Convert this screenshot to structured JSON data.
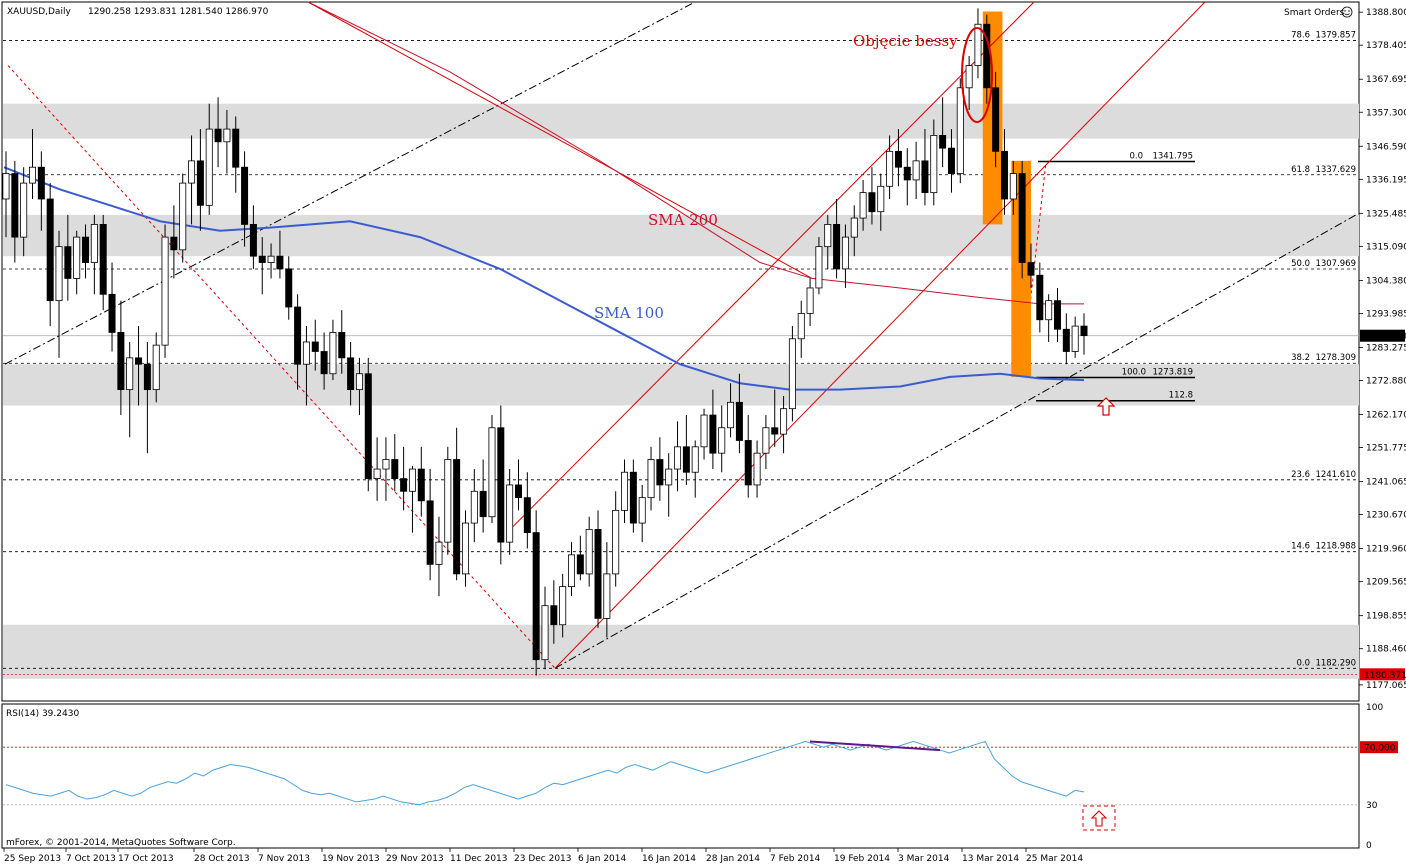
{
  "header": {
    "symbol": "XAUUSD,Daily",
    "ohlc": "1290.258 1293.831 1281.540 1286.970",
    "smart_orders": "Smart Orders",
    "smart_icon": "smiley-icon"
  },
  "colors": {
    "sma100": "#3b5ccf",
    "sma200": "#c8102e",
    "annotation_red": "#dd0000",
    "orange": "#ff8c00",
    "zone_gray": "#dcdcdc",
    "rsi_line": "#4aa3df",
    "rsi_divergence": "#5b1a8a"
  },
  "annotations": {
    "objecie_bessy": "Objęcie bessy",
    "sma200": "SMA 200",
    "sma100": "SMA 100",
    "up_arrow_icon": "up-arrow-icon"
  },
  "chart_data": [
    {
      "type": "candlestick",
      "ylim": [
        1172.0,
        1392.0
      ],
      "x_ticks": [
        "25 Sep 2013",
        "7 Oct 2013",
        "17 Oct 2013",
        "28 Oct 2013",
        "7 Nov 2013",
        "19 Nov 2013",
        "29 Nov 2013",
        "11 Dec 2013",
        "23 Dec 2013",
        "6 Jan 2014",
        "16 Jan 2014",
        "28 Jan 2014",
        "7 Feb 2014",
        "19 Feb 2014",
        "3 Mar 2014",
        "13 Mar 2014",
        "25 Mar 2014"
      ],
      "y_ticks": [
        "1388.800",
        "1378.405",
        "1367.695",
        "1357.300",
        "1346.590",
        "1336.195",
        "1325.485",
        "1315.090",
        "1304.380",
        "1293.985",
        "1283.275",
        "1272.880",
        "1262.170",
        "1251.775",
        "1241.065",
        "1230.670",
        "1219.960",
        "1209.565",
        "1198.855",
        "1188.460",
        "1177.065"
      ],
      "current_price": "1286.970",
      "low_label": "1180.371",
      "fib_levels": [
        {
          "pct": "78.6",
          "value": "1379.857"
        },
        {
          "pct": "61.8",
          "value": "1337.629"
        },
        {
          "pct": "50.0",
          "value": "1307.969"
        },
        {
          "pct": "38.2",
          "value": "1278.309"
        },
        {
          "pct": "23.6",
          "value": "1241.610"
        },
        {
          "pct": "14.6",
          "value": "1218.988"
        },
        {
          "pct": "0.0",
          "value": "1182.290"
        }
      ],
      "fib2_levels": [
        {
          "pct": "0.0",
          "value": "1341.795"
        },
        {
          "pct": "100.0",
          "value": "1273.819"
        },
        {
          "pct": "112.8",
          "value": ""
        }
      ],
      "candles": [
        [
          1330,
          1345,
          1318,
          1338
        ],
        [
          1338,
          1342,
          1310,
          1318
        ],
        [
          1318,
          1340,
          1312,
          1335
        ],
        [
          1335,
          1352,
          1330,
          1340
        ],
        [
          1340,
          1345,
          1320,
          1330
        ],
        [
          1330,
          1335,
          1290,
          1298
        ],
        [
          1298,
          1320,
          1280,
          1315
        ],
        [
          1315,
          1325,
          1298,
          1305
        ],
        [
          1305,
          1320,
          1300,
          1318
        ],
        [
          1318,
          1322,
          1305,
          1310
        ],
        [
          1310,
          1325,
          1300,
          1322
        ],
        [
          1322,
          1325,
          1295,
          1300
        ],
        [
          1300,
          1310,
          1282,
          1288
        ],
        [
          1288,
          1298,
          1262,
          1270
        ],
        [
          1270,
          1285,
          1255,
          1280
        ],
        [
          1280,
          1290,
          1265,
          1278
        ],
        [
          1278,
          1285,
          1250,
          1270
        ],
        [
          1270,
          1288,
          1266,
          1284
        ],
        [
          1284,
          1322,
          1280,
          1318
        ],
        [
          1318,
          1328,
          1305,
          1314
        ],
        [
          1314,
          1338,
          1310,
          1335
        ],
        [
          1335,
          1350,
          1322,
          1342
        ],
        [
          1342,
          1352,
          1320,
          1328
        ],
        [
          1328,
          1360,
          1325,
          1352
        ],
        [
          1352,
          1362,
          1340,
          1348
        ],
        [
          1348,
          1358,
          1338,
          1352
        ],
        [
          1352,
          1356,
          1332,
          1340
        ],
        [
          1340,
          1345,
          1315,
          1322
        ],
        [
          1322,
          1328,
          1308,
          1312
        ],
        [
          1312,
          1318,
          1300,
          1310
        ],
        [
          1310,
          1316,
          1305,
          1312
        ],
        [
          1312,
          1320,
          1305,
          1308
        ],
        [
          1308,
          1312,
          1292,
          1296
        ],
        [
          1296,
          1300,
          1270,
          1278
        ],
        [
          1278,
          1290,
          1265,
          1285
        ],
        [
          1285,
          1292,
          1276,
          1282
        ],
        [
          1282,
          1288,
          1270,
          1275
        ],
        [
          1275,
          1292,
          1273,
          1288
        ],
        [
          1288,
          1295,
          1275,
          1280
        ],
        [
          1280,
          1285,
          1265,
          1270
        ],
        [
          1270,
          1280,
          1262,
          1275
        ],
        [
          1275,
          1280,
          1238,
          1242
        ],
        [
          1242,
          1255,
          1235,
          1245
        ],
        [
          1245,
          1255,
          1235,
          1248
        ],
        [
          1248,
          1256,
          1238,
          1242
        ],
        [
          1242,
          1252,
          1232,
          1238
        ],
        [
          1238,
          1246,
          1225,
          1245
        ],
        [
          1245,
          1252,
          1230,
          1235
        ],
        [
          1235,
          1245,
          1210,
          1215
        ],
        [
          1215,
          1230,
          1205,
          1222
        ],
        [
          1222,
          1252,
          1218,
          1248
        ],
        [
          1248,
          1258,
          1210,
          1212
        ],
        [
          1212,
          1232,
          1208,
          1228
        ],
        [
          1228,
          1245,
          1222,
          1238
        ],
        [
          1238,
          1248,
          1225,
          1230
        ],
        [
          1230,
          1262,
          1228,
          1258
        ],
        [
          1258,
          1265,
          1215,
          1222
        ],
        [
          1222,
          1245,
          1218,
          1240
        ],
        [
          1240,
          1248,
          1232,
          1236
        ],
        [
          1236,
          1244,
          1220,
          1225
        ],
        [
          1225,
          1232,
          1180,
          1185
        ],
        [
          1185,
          1208,
          1182,
          1202
        ],
        [
          1202,
          1210,
          1190,
          1196
        ],
        [
          1196,
          1212,
          1192,
          1208
        ],
        [
          1208,
          1222,
          1205,
          1218
        ],
        [
          1218,
          1224,
          1210,
          1212
        ],
        [
          1212,
          1230,
          1208,
          1226
        ],
        [
          1226,
          1232,
          1195,
          1198
        ],
        [
          1198,
          1222,
          1192,
          1212
        ],
        [
          1212,
          1238,
          1208,
          1232
        ],
        [
          1232,
          1248,
          1228,
          1244
        ],
        [
          1244,
          1248,
          1225,
          1228
        ],
        [
          1228,
          1240,
          1222,
          1236
        ],
        [
          1236,
          1252,
          1232,
          1248
        ],
        [
          1248,
          1255,
          1235,
          1240
        ],
        [
          1240,
          1250,
          1230,
          1245
        ],
        [
          1245,
          1260,
          1238,
          1252
        ],
        [
          1252,
          1262,
          1240,
          1244
        ],
        [
          1244,
          1254,
          1236,
          1252
        ],
        [
          1252,
          1264,
          1248,
          1262
        ],
        [
          1262,
          1270,
          1245,
          1250
        ],
        [
          1250,
          1265,
          1244,
          1258
        ],
        [
          1258,
          1272,
          1255,
          1266
        ],
        [
          1266,
          1275,
          1250,
          1254
        ],
        [
          1254,
          1262,
          1236,
          1240
        ],
        [
          1240,
          1254,
          1236,
          1250
        ],
        [
          1250,
          1262,
          1245,
          1258
        ],
        [
          1258,
          1270,
          1252,
          1256
        ],
        [
          1256,
          1268,
          1250,
          1264
        ],
        [
          1264,
          1290,
          1260,
          1286
        ],
        [
          1286,
          1298,
          1280,
          1294
        ],
        [
          1294,
          1305,
          1290,
          1302
        ],
        [
          1302,
          1318,
          1300,
          1315
        ],
        [
          1315,
          1325,
          1308,
          1322
        ],
        [
          1322,
          1330,
          1305,
          1308
        ],
        [
          1308,
          1322,
          1302,
          1318
        ],
        [
          1318,
          1328,
          1312,
          1324
        ],
        [
          1324,
          1336,
          1320,
          1332
        ],
        [
          1332,
          1340,
          1322,
          1326
        ],
        [
          1326,
          1338,
          1320,
          1334
        ],
        [
          1334,
          1350,
          1330,
          1345
        ],
        [
          1345,
          1352,
          1334,
          1340
        ],
        [
          1340,
          1346,
          1328,
          1336
        ],
        [
          1336,
          1348,
          1330,
          1342
        ],
        [
          1342,
          1352,
          1328,
          1332
        ],
        [
          1332,
          1355,
          1328,
          1350
        ],
        [
          1350,
          1362,
          1340,
          1346
        ],
        [
          1346,
          1352,
          1332,
          1338
        ],
        [
          1338,
          1368,
          1335,
          1365
        ],
        [
          1365,
          1375,
          1358,
          1372
        ],
        [
          1372,
          1390,
          1368,
          1385
        ],
        [
          1385,
          1388,
          1360,
          1365
        ],
        [
          1365,
          1370,
          1340,
          1345
        ],
        [
          1345,
          1352,
          1325,
          1330
        ],
        [
          1330,
          1342,
          1325,
          1338
        ],
        [
          1338,
          1342,
          1305,
          1310
        ],
        [
          1310,
          1316,
          1302,
          1306
        ],
        [
          1306,
          1310,
          1288,
          1292
        ],
        [
          1292,
          1300,
          1285,
          1298
        ],
        [
          1298,
          1302,
          1285,
          1289
        ],
        [
          1289,
          1294,
          1278,
          1282
        ],
        [
          1282,
          1293,
          1280,
          1290
        ],
        [
          1290,
          1294,
          1281,
          1287
        ]
      ]
    },
    {
      "type": "line",
      "title": "RSI(14) 39.2430",
      "ylim": [
        0,
        100
      ],
      "y_ticks": [
        "100",
        "70.000",
        "30",
        "0"
      ],
      "level": "70.000",
      "values": [
        44,
        42,
        40,
        38,
        37,
        36,
        38,
        40,
        36,
        34,
        35,
        37,
        40,
        38,
        36,
        38,
        42,
        44,
        46,
        45,
        48,
        52,
        50,
        54,
        56,
        58,
        57,
        56,
        54,
        52,
        50,
        48,
        44,
        40,
        38,
        37,
        38,
        36,
        34,
        32,
        33,
        34,
        36,
        34,
        32,
        31,
        30,
        32,
        33,
        35,
        38,
        42,
        44,
        42,
        40,
        38,
        36,
        34,
        36,
        38,
        42,
        45,
        44,
        46,
        48,
        50,
        52,
        54,
        52,
        56,
        58,
        56,
        54,
        57,
        60,
        58,
        56,
        54,
        52,
        54,
        56,
        58,
        60,
        62,
        64,
        66,
        68,
        70,
        72,
        74,
        72,
        70,
        72,
        70,
        68,
        70,
        72,
        70,
        68,
        70,
        72,
        74,
        72,
        70,
        68,
        66,
        68,
        70,
        72,
        74,
        62,
        56,
        50,
        46,
        44,
        42,
        40,
        38,
        36,
        40,
        39
      ]
    }
  ],
  "footer": {
    "copyright": "mForex, © 2001-2014, MetaQuotes Software Corp."
  }
}
